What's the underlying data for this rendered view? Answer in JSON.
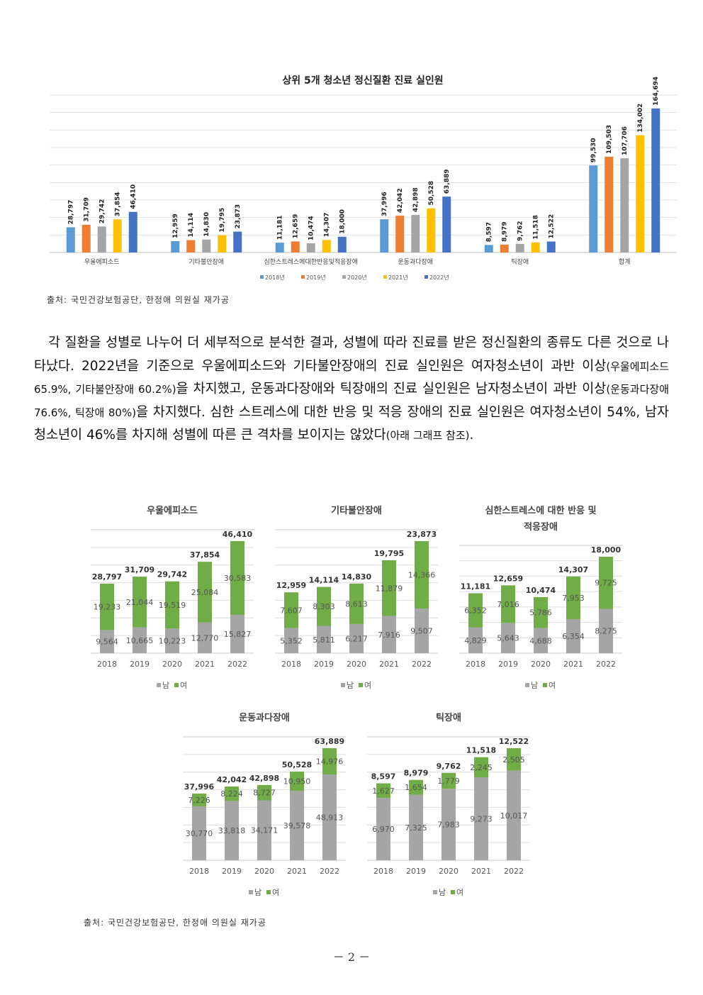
{
  "top_chart": {
    "title": "상위 5개 청소년 정신질환 진료 실인원",
    "categories": [
      "우울에피소드",
      "기타불안장애",
      "심한스트레스에대한반응및적응장애",
      "운동과다장애",
      "틱장애",
      "합계"
    ],
    "series": [
      {
        "name": "2018년",
        "color": "#5b9bd5",
        "values": [
          28797,
          12959,
          11181,
          37996,
          8597,
          99530
        ]
      },
      {
        "name": "2019년",
        "color": "#ed7d31",
        "values": [
          31709,
          14114,
          12659,
          42042,
          8979,
          109503
        ]
      },
      {
        "name": "2020년",
        "color": "#a5a5a5",
        "values": [
          29742,
          14830,
          10474,
          42898,
          9762,
          107706
        ]
      },
      {
        "name": "2021년",
        "color": "#ffc000",
        "values": [
          37854,
          19795,
          14307,
          50528,
          11518,
          134002
        ]
      },
      {
        "name": "2022년",
        "color": "#4472c4",
        "values": [
          46410,
          23873,
          18000,
          63889,
          12522,
          164694
        ]
      }
    ]
  },
  "source1": "출처: 국민건강보험공단, 한정애 의원실 재가공",
  "paragraph": {
    "p1": "각 질환을 성별로 나누어 더 세부적으로 분석한 결과, 성별에 따라 진료를 받은 정신질환의 종류도 다른 것으로 나타났다. 2022년을 기준으로 우울에피소드와 기타불안장애의 진료 실인원은 여자청소년이 과반 이상",
    "s1": "(우울에피소드 65.9%, 기타불안장애 60.2%)",
    "p2": "을 차지했고, 운동과다장애와 틱장애의 진료 실인원은 남자청소년이 과반 이상",
    "s2": "(운동과다장애 76.6%, 틱장애 80%)",
    "p3": "을 차지했다. 심한 스트레스에 대한 반응 및 적응 장애의 진료 실인원은 여자청소년이 54%, 남자청소년이 46%를 차지해 성별에 따른 큰 격차를 보이지는 않았다",
    "s3": "(아래 그래프 참조)",
    "p4": "."
  },
  "chart_data": [
    {
      "type": "bar",
      "title": "상위 5개 청소년 정신질환 진료 실인원",
      "categories": [
        "우울에피소드",
        "기타불안장애",
        "심한스트레스에대한반응및적응장애",
        "운동과다장애",
        "틱장애",
        "합계"
      ],
      "series": [
        {
          "name": "2018년",
          "values": [
            28797,
            12959,
            11181,
            37996,
            8597,
            99530
          ]
        },
        {
          "name": "2019년",
          "values": [
            31709,
            14114,
            12659,
            42042,
            8979,
            109503
          ]
        },
        {
          "name": "2020년",
          "values": [
            29742,
            14830,
            10474,
            42898,
            9762,
            107706
          ]
        },
        {
          "name": "2021년",
          "values": [
            37854,
            19795,
            14307,
            50528,
            11518,
            134002
          ]
        },
        {
          "name": "2022년",
          "values": [
            46410,
            23873,
            18000,
            63889,
            12522,
            164694
          ]
        }
      ],
      "legend": "bottom"
    },
    {
      "type": "bar",
      "stacked": true,
      "title": "우울에피소드",
      "categories": [
        "2018",
        "2019",
        "2020",
        "2021",
        "2022"
      ],
      "series": [
        {
          "name": "남",
          "values": [
            9564,
            10665,
            10223,
            12770,
            15827
          ]
        },
        {
          "name": "여",
          "values": [
            19233,
            21044,
            19519,
            25084,
            30583
          ]
        }
      ],
      "totals": [
        28797,
        31709,
        29742,
        37854,
        46410
      ],
      "legend": "bottom"
    },
    {
      "type": "bar",
      "stacked": true,
      "title": "기타불안장애",
      "categories": [
        "2018",
        "2019",
        "2020",
        "2021",
        "2022"
      ],
      "series": [
        {
          "name": "남",
          "values": [
            5352,
            5811,
            6217,
            7916,
            9507
          ]
        },
        {
          "name": "여",
          "values": [
            7607,
            8303,
            8613,
            11879,
            14366
          ]
        }
      ],
      "totals": [
        12959,
        14114,
        14830,
        19795,
        23873
      ],
      "legend": "bottom"
    },
    {
      "type": "bar",
      "stacked": true,
      "title": "심한스트레스에 대한 반응 및 적응장애",
      "categories": [
        "2018",
        "2019",
        "2020",
        "2021",
        "2022"
      ],
      "series": [
        {
          "name": "남",
          "values": [
            4829,
            5643,
            4688,
            6354,
            8275
          ]
        },
        {
          "name": "여",
          "values": [
            6352,
            7016,
            5786,
            7953,
            9725
          ]
        }
      ],
      "totals": [
        11181,
        12659,
        10474,
        14307,
        18000
      ],
      "legend": "bottom"
    },
    {
      "type": "bar",
      "stacked": true,
      "title": "운동과다장애",
      "categories": [
        "2018",
        "2019",
        "2020",
        "2021",
        "2022"
      ],
      "series": [
        {
          "name": "남",
          "values": [
            30770,
            33818,
            34171,
            39578,
            48913
          ]
        },
        {
          "name": "여",
          "values": [
            7226,
            8224,
            8727,
            10950,
            14976
          ]
        }
      ],
      "totals": [
        37996,
        42042,
        42898,
        50528,
        63889
      ],
      "legend": "bottom"
    },
    {
      "type": "bar",
      "stacked": true,
      "title": "틱장애",
      "categories": [
        "2018",
        "2019",
        "2020",
        "2021",
        "2022"
      ],
      "series": [
        {
          "name": "남",
          "values": [
            6970,
            7325,
            7983,
            9273,
            10017
          ]
        },
        {
          "name": "여",
          "values": [
            1627,
            1654,
            1779,
            2245,
            2505
          ]
        }
      ],
      "totals": [
        8597,
        8979,
        9762,
        11518,
        12522
      ],
      "legend": "bottom"
    }
  ],
  "small_charts": [
    {
      "title_lines": [
        "우울에피소드"
      ],
      "years": [
        "2018",
        "2019",
        "2020",
        "2021",
        "2022"
      ],
      "male": [
        9564,
        10665,
        10223,
        12770,
        15827
      ],
      "female": [
        19233,
        21044,
        19519,
        25084,
        30583
      ],
      "male_labels": [
        "9,564",
        "10,665",
        "10,223",
        "12,770",
        "15,827"
      ],
      "female_labels": [
        "19,233",
        "21,044",
        "19,519",
        "25,084",
        "30,583"
      ],
      "total_labels": [
        "28,797",
        "31,709",
        "29,742",
        "37,854",
        "46,410"
      ]
    },
    {
      "title_lines": [
        "기타불안장애"
      ],
      "years": [
        "2018",
        "2019",
        "2020",
        "2021",
        "2022"
      ],
      "male": [
        5352,
        5811,
        6217,
        7916,
        9507
      ],
      "female": [
        7607,
        8303,
        8613,
        11879,
        14366
      ],
      "male_labels": [
        "5,352",
        "5,811",
        "6,217",
        "7,916",
        "9,507"
      ],
      "female_labels": [
        "7,607",
        "8,303",
        "8,613",
        "11,879",
        "14,366"
      ],
      "total_labels": [
        "12,959",
        "14,114",
        "14,830",
        "19,795",
        "23,873"
      ]
    },
    {
      "title_lines": [
        "심한스트레스에 대한 반응 및",
        "적응장애"
      ],
      "years": [
        "2018",
        "2019",
        "2020",
        "2021",
        "2022"
      ],
      "male": [
        4829,
        5643,
        4688,
        6354,
        8275
      ],
      "female": [
        6352,
        7016,
        5786,
        7953,
        9725
      ],
      "male_labels": [
        "4,829",
        "5,643",
        "4,688",
        "6,354",
        "8,275"
      ],
      "female_labels": [
        "6,352",
        "7,016",
        "5,786",
        "7,953",
        "9,725"
      ],
      "total_labels": [
        "11,181",
        "12,659",
        "10,474",
        "14,307",
        "18,000"
      ]
    },
    {
      "title_lines": [
        "운동과다장애"
      ],
      "years": [
        "2018",
        "2019",
        "2020",
        "2021",
        "2022"
      ],
      "male": [
        30770,
        33818,
        34171,
        39578,
        48913
      ],
      "female": [
        7226,
        8224,
        8727,
        10950,
        14976
      ],
      "male_labels": [
        "30,770",
        "33,818",
        "34,171",
        "39,578",
        "48,913"
      ],
      "female_labels": [
        "7,226",
        "8,224",
        "8,727",
        "10,950",
        "14,976"
      ],
      "total_labels": [
        "37,996",
        "42,042",
        "42,898",
        "50,528",
        "63,889"
      ]
    },
    {
      "title_lines": [
        "틱장애"
      ],
      "years": [
        "2018",
        "2019",
        "2020",
        "2021",
        "2022"
      ],
      "male": [
        6970,
        7325,
        7983,
        9273,
        10017
      ],
      "female": [
        1627,
        1654,
        1779,
        2245,
        2505
      ],
      "male_labels": [
        "6,970",
        "7,325",
        "7,983",
        "9,273",
        "10,017"
      ],
      "female_labels": [
        "1,627",
        "1,654",
        "1,779",
        "2,245",
        "2,505"
      ],
      "total_labels": [
        "8,597",
        "8,979",
        "9,762",
        "11,518",
        "12,522"
      ]
    }
  ],
  "small_legend": {
    "male": "남",
    "female": "여",
    "male_color": "#a5a5a5",
    "female_color": "#70ad47"
  },
  "source2": "출처: 국민건강보험공단, 한정애 의원실 재가공",
  "page_number": "－ 2 －"
}
